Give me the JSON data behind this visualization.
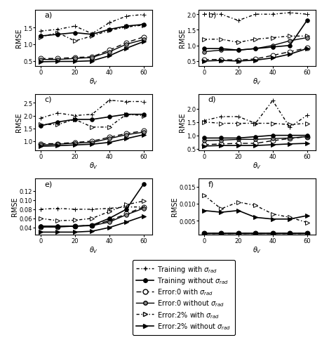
{
  "x": [
    0,
    10,
    20,
    30,
    40,
    50,
    60
  ],
  "panels": {
    "a": {
      "label": "a)",
      "ylim": [
        0.35,
        2.05
      ],
      "yticks": [
        0.5,
        1.0,
        1.5
      ],
      "series": {
        "train_with": [
          1.4,
          1.45,
          1.55,
          1.32,
          1.65,
          1.85,
          1.9
        ],
        "train_without": [
          1.25,
          1.3,
          1.35,
          1.3,
          1.45,
          1.55,
          1.6
        ],
        "err0_with": [
          0.57,
          0.57,
          0.6,
          0.62,
          0.82,
          1.05,
          1.22
        ],
        "err0_without": [
          0.54,
          0.54,
          0.57,
          0.6,
          0.77,
          1.0,
          1.14
        ],
        "err2_with": [
          1.22,
          1.35,
          1.1,
          1.25,
          1.42,
          1.52,
          1.58
        ],
        "err2_without": [
          0.47,
          0.48,
          0.48,
          0.5,
          0.65,
          0.88,
          1.08
        ]
      }
    },
    "b": {
      "label": "b)",
      "ylim": [
        0.35,
        2.15
      ],
      "yticks": [
        0.5,
        1.0,
        1.5,
        2.0
      ],
      "series": {
        "train_with": [
          2.0,
          2.0,
          1.8,
          2.0,
          2.0,
          2.05,
          2.0
        ],
        "train_without": [
          0.9,
          0.9,
          0.85,
          0.9,
          0.95,
          1.0,
          1.8
        ],
        "err0_with": [
          0.55,
          0.55,
          0.53,
          0.57,
          0.68,
          0.8,
          0.92
        ],
        "err0_without": [
          0.8,
          0.85,
          0.85,
          0.9,
          1.0,
          1.15,
          1.25
        ],
        "err2_with": [
          1.2,
          1.2,
          1.1,
          1.2,
          1.25,
          1.3,
          1.3
        ],
        "err2_without": [
          0.5,
          0.52,
          0.5,
          0.53,
          0.6,
          0.72,
          0.9
        ]
      }
    },
    "c": {
      "label": "c)",
      "ylim": [
        0.65,
        2.85
      ],
      "yticks": [
        1.0,
        1.5,
        2.0,
        2.5
      ],
      "series": {
        "train_with": [
          1.9,
          2.1,
          2.0,
          2.05,
          2.6,
          2.55,
          2.55
        ],
        "train_without": [
          1.6,
          1.75,
          1.85,
          1.85,
          1.95,
          2.05,
          2.05
        ],
        "err0_with": [
          0.9,
          0.9,
          0.95,
          1.0,
          1.15,
          1.3,
          1.4
        ],
        "err0_without": [
          0.85,
          0.88,
          0.92,
          0.95,
          1.1,
          1.25,
          1.35
        ],
        "err2_with": [
          1.65,
          1.65,
          1.85,
          1.55,
          1.55,
          2.05,
          2.0
        ],
        "err2_without": [
          0.8,
          0.82,
          0.85,
          0.88,
          0.95,
          1.1,
          1.25
        ]
      }
    },
    "d": {
      "label": "d)",
      "ylim": [
        0.45,
        2.55
      ],
      "yticks": [
        0.5,
        1.0,
        1.5,
        2.0
      ],
      "series": {
        "train_with": [
          1.55,
          1.7,
          1.7,
          1.45,
          2.3,
          1.3,
          1.75
        ],
        "train_without": [
          0.9,
          0.9,
          0.9,
          0.95,
          1.0,
          1.0,
          1.0
        ],
        "err0_with": [
          0.65,
          0.68,
          0.7,
          0.7,
          0.8,
          0.88,
          0.95
        ],
        "err0_without": [
          0.8,
          0.82,
          0.85,
          0.85,
          0.88,
          0.9,
          0.95
        ],
        "err2_with": [
          1.5,
          1.45,
          1.45,
          1.45,
          1.45,
          1.4,
          1.45
        ],
        "err2_without": [
          0.6,
          0.62,
          0.62,
          0.62,
          0.65,
          0.68,
          0.7
        ]
      }
    },
    "e": {
      "label": "e)",
      "ylim": [
        0.025,
        0.148
      ],
      "yticks": [
        0.04,
        0.06,
        0.08,
        0.1,
        0.12
      ],
      "series": {
        "train_with": [
          0.08,
          0.082,
          0.08,
          0.08,
          0.082,
          0.085,
          0.085
        ],
        "train_without": [
          0.043,
          0.043,
          0.043,
          0.045,
          0.06,
          0.08,
          0.135
        ],
        "err0_with": [
          0.042,
          0.042,
          0.043,
          0.045,
          0.055,
          0.07,
          0.085
        ],
        "err0_without": [
          0.041,
          0.041,
          0.043,
          0.044,
          0.052,
          0.068,
          0.082
        ],
        "err2_with": [
          0.06,
          0.055,
          0.056,
          0.06,
          0.075,
          0.09,
          0.098
        ],
        "err2_without": [
          0.03,
          0.03,
          0.03,
          0.032,
          0.04,
          0.052,
          0.065
        ]
      }
    },
    "f": {
      "label": "f)",
      "ylim": [
        0.001,
        0.0175
      ],
      "yticks": [
        0.005,
        0.01,
        0.015
      ],
      "series": {
        "train_with": [
          0.0013,
          0.0013,
          0.0013,
          0.0013,
          0.0013,
          0.0013,
          0.0013
        ],
        "train_without": [
          0.0013,
          0.0013,
          0.0013,
          0.0013,
          0.0013,
          0.0013,
          0.0013
        ],
        "err0_with": [
          0.0013,
          0.0013,
          0.0013,
          0.0013,
          0.0013,
          0.0013,
          0.0013
        ],
        "err0_without": [
          0.0013,
          0.0013,
          0.0013,
          0.0013,
          0.0013,
          0.0013,
          0.0013
        ],
        "err2_with": [
          0.0125,
          0.0085,
          0.0105,
          0.0095,
          0.007,
          0.006,
          0.0045
        ],
        "err2_without": [
          0.008,
          0.0075,
          0.008,
          0.006,
          0.0055,
          0.0055,
          0.0065
        ]
      }
    }
  },
  "legend_entries": [
    " - Training with σ₀ₙₐ₁",
    "— Training without σ₀ₙₐ₁",
    " -o- Error:0 with σ₀ₙₐ₁",
    "— Error:0 without σ₀ₙₐ₁",
    " -▷- Error:2% with σ₀ₙₐ₁",
    "— Error:2% without σ₀ₙₐ₁"
  ],
  "legend_labels": [
    "Training with σrad",
    "Training without σrad",
    "Error:0 with σrad",
    "Error:0 without σrad",
    "Error:2% with σrad",
    "Error:2% without σrad"
  ]
}
